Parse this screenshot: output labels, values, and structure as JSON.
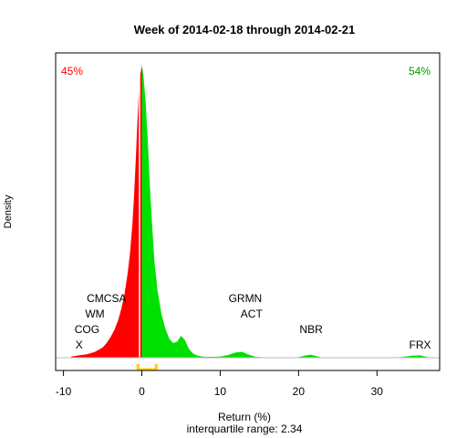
{
  "chart_data": {
    "type": "area",
    "title": "Week of 2014-02-18 through 2014-02-21",
    "xlabel": "Return (%)",
    "subtitle": "interquartile range: 2.34",
    "ylabel": "Density",
    "xlim": [
      -11,
      38
    ],
    "xticks": [
      -10,
      0,
      10,
      20,
      30
    ],
    "grid": false,
    "split_at": 0,
    "percent_below": "45%",
    "percent_above": "54%",
    "colors": {
      "below": "#ff0000",
      "above": "#00e000",
      "quartile_bracket": "#ffcc00",
      "baseline": "#bbbbbb"
    },
    "density": {
      "x": [
        -9.0,
        -8.0,
        -7.0,
        -6.0,
        -5.0,
        -4.5,
        -4.0,
        -3.5,
        -3.0,
        -2.6,
        -2.2,
        -1.8,
        -1.5,
        -1.2,
        -1.0,
        -0.8,
        -0.6,
        -0.4,
        -0.2,
        0.0,
        0.2,
        0.5,
        0.8,
        1.0,
        1.3,
        1.6,
        2.0,
        2.5,
        3.0,
        3.5,
        4.0,
        4.5,
        5.0,
        5.5,
        6.0,
        6.5,
        7.0,
        7.5,
        8.0,
        9.0,
        10.0,
        11.0,
        12.0,
        12.8,
        13.5,
        14.5,
        16.0,
        18.0,
        20.0,
        21.0,
        21.6,
        22.2,
        23.0,
        26.0,
        30.0,
        33.0,
        34.5,
        35.5,
        36.5,
        37.5
      ],
      "y": [
        0.004,
        0.008,
        0.012,
        0.02,
        0.035,
        0.05,
        0.07,
        0.095,
        0.13,
        0.17,
        0.22,
        0.29,
        0.36,
        0.46,
        0.55,
        0.66,
        0.79,
        0.9,
        0.97,
        1.0,
        0.97,
        0.87,
        0.72,
        0.6,
        0.46,
        0.33,
        0.23,
        0.15,
        0.1,
        0.065,
        0.05,
        0.055,
        0.075,
        0.06,
        0.03,
        0.015,
        0.008,
        0.005,
        0.003,
        0.003,
        0.004,
        0.009,
        0.018,
        0.02,
        0.012,
        0.003,
        0.001,
        0.001,
        0.002,
        0.008,
        0.01,
        0.006,
        0.001,
        0.001,
        0.001,
        0.002,
        0.007,
        0.008,
        0.002,
        0.0
      ]
    },
    "quartile_bracket": {
      "low": -0.5,
      "high": 1.84
    },
    "stock_labels": [
      {
        "text": "CMCSA",
        "x": -4.5,
        "row": 4
      },
      {
        "text": "WM",
        "x": -6.0,
        "row": 3
      },
      {
        "text": "COG",
        "x": -7.0,
        "row": 2
      },
      {
        "text": "X",
        "x": -8.0,
        "row": 1
      },
      {
        "text": "GRMN",
        "x": 13.2,
        "row": 4
      },
      {
        "text": "ACT",
        "x": 14.0,
        "row": 3
      },
      {
        "text": "NBR",
        "x": 21.6,
        "row": 2
      },
      {
        "text": "FRX",
        "x": 35.5,
        "row": 1
      }
    ]
  }
}
